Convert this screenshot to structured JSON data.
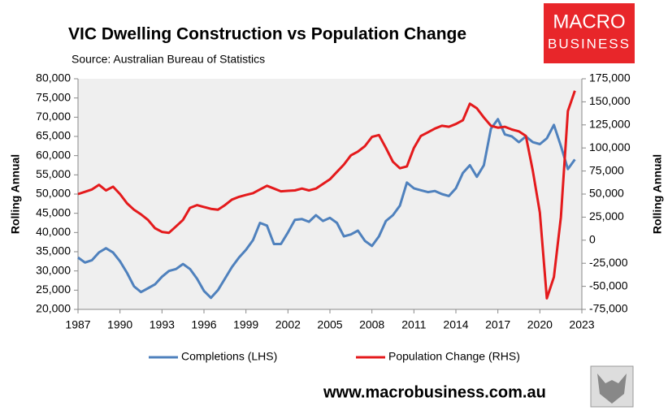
{
  "chart_data": {
    "type": "line",
    "title": "VIC Dwelling Construction vs Population Change",
    "subtitle": "Source: Australian Bureau of Statistics",
    "y_label": "Rolling Annual",
    "y2_label": "Rolling Annual",
    "website": "www.macrobusiness.com.au",
    "logo": [
      "MACRO",
      "BUSINESS"
    ],
    "legend": "bottom",
    "grid": false,
    "xlim": [
      1987,
      2023
    ],
    "xticks": [
      1987,
      1990,
      1993,
      1996,
      1999,
      2002,
      2005,
      2008,
      2011,
      2014,
      2017,
      2020,
      2023
    ],
    "ylim": [
      20000,
      80000
    ],
    "yticks": [
      {
        "value": 20000,
        "label": "20,000"
      },
      {
        "value": 25000,
        "label": "25,000"
      },
      {
        "value": 30000,
        "label": "30,000"
      },
      {
        "value": 35000,
        "label": "35,000"
      },
      {
        "value": 40000,
        "label": "40,000"
      },
      {
        "value": 45000,
        "label": "45,000"
      },
      {
        "value": 50000,
        "label": "50,000"
      },
      {
        "value": 55000,
        "label": "55,000"
      },
      {
        "value": 60000,
        "label": "60,000"
      },
      {
        "value": 65000,
        "label": "65,000"
      },
      {
        "value": 70000,
        "label": "70,000"
      },
      {
        "value": 75000,
        "label": "75,000"
      },
      {
        "value": 80000,
        "label": "80,000"
      }
    ],
    "y2lim": [
      -75000,
      175000
    ],
    "y2ticks": [
      {
        "value": -75000,
        "label": "-75,000"
      },
      {
        "value": -50000,
        "label": "-50,000"
      },
      {
        "value": -25000,
        "label": "-25,000"
      },
      0,
      {
        "value": 25000,
        "label": "25,000"
      },
      {
        "value": 50000,
        "label": "50,000"
      },
      {
        "value": 75000,
        "label": "75,000"
      },
      {
        "value": 100000,
        "label": "100,000"
      },
      {
        "value": 125000,
        "label": "125,000"
      },
      {
        "value": 150000,
        "label": "150,000"
      },
      {
        "value": 175000,
        "label": "175,000"
      }
    ],
    "x": [
      1987.0,
      1987.5,
      1988.0,
      1988.5,
      1989.0,
      1989.5,
      1990.0,
      1990.5,
      1991.0,
      1991.5,
      1992.0,
      1992.5,
      1993.0,
      1993.5,
      1994.0,
      1994.5,
      1995.0,
      1995.5,
      1996.0,
      1996.5,
      1997.0,
      1997.5,
      1998.0,
      1998.5,
      1999.0,
      1999.5,
      2000.0,
      2000.5,
      2001.0,
      2001.5,
      2002.0,
      2002.5,
      2003.0,
      2003.5,
      2004.0,
      2004.5,
      2005.0,
      2005.5,
      2006.0,
      2006.5,
      2007.0,
      2007.5,
      2008.0,
      2008.5,
      2009.0,
      2009.5,
      2010.0,
      2010.5,
      2011.0,
      2011.5,
      2012.0,
      2012.5,
      2013.0,
      2013.5,
      2014.0,
      2014.5,
      2015.0,
      2015.5,
      2016.0,
      2016.5,
      2017.0,
      2017.5,
      2018.0,
      2018.5,
      2019.0,
      2019.5,
      2020.0,
      2020.5,
      2021.0,
      2021.5,
      2022.0,
      2022.5
    ],
    "series": [
      {
        "name": "Completions (LHS)",
        "color": "#4f81bd",
        "axis": "y",
        "values": [
          33500,
          32200,
          32800,
          34800,
          35900,
          34800,
          32500,
          29500,
          26000,
          24500,
          25500,
          26500,
          28500,
          30000,
          30500,
          31800,
          30500,
          28000,
          24800,
          23000,
          25000,
          28000,
          31000,
          33500,
          35500,
          38000,
          42500,
          41800,
          37000,
          37000,
          40000,
          43300,
          43500,
          42800,
          44500,
          43000,
          43800,
          42500,
          39000,
          39500,
          40500,
          37800,
          36500,
          39000,
          43000,
          44500,
          47000,
          53000,
          51500,
          51000,
          50500,
          50800,
          50000,
          49500,
          51500,
          55500,
          57500,
          54500,
          57500,
          67000,
          69500,
          65500,
          65000,
          63500,
          65000,
          63500,
          63000,
          64500,
          68000,
          62500,
          56500,
          59000
        ]
      },
      {
        "name": "Population Change (RHS)",
        "color": "#e41a1c",
        "axis": "y2",
        "values": [
          50000,
          52500,
          55000,
          60000,
          54000,
          58000,
          50000,
          40000,
          33000,
          28000,
          22000,
          13000,
          9000,
          8000,
          15000,
          22000,
          35000,
          38000,
          36000,
          34000,
          33000,
          38000,
          44000,
          47000,
          49000,
          51000,
          55000,
          59000,
          56000,
          53000,
          53500,
          54000,
          56000,
          54000,
          56000,
          61000,
          66000,
          74000,
          82000,
          92000,
          96000,
          102000,
          112000,
          114000,
          100000,
          85000,
          78000,
          80000,
          100000,
          113000,
          117000,
          121000,
          124000,
          123000,
          126000,
          130000,
          148000,
          143000,
          133000,
          124000,
          122000,
          123000,
          120000,
          118000,
          113000,
          75000,
          30000,
          -63000,
          -40000,
          25000,
          140000,
          162000
        ]
      }
    ]
  }
}
